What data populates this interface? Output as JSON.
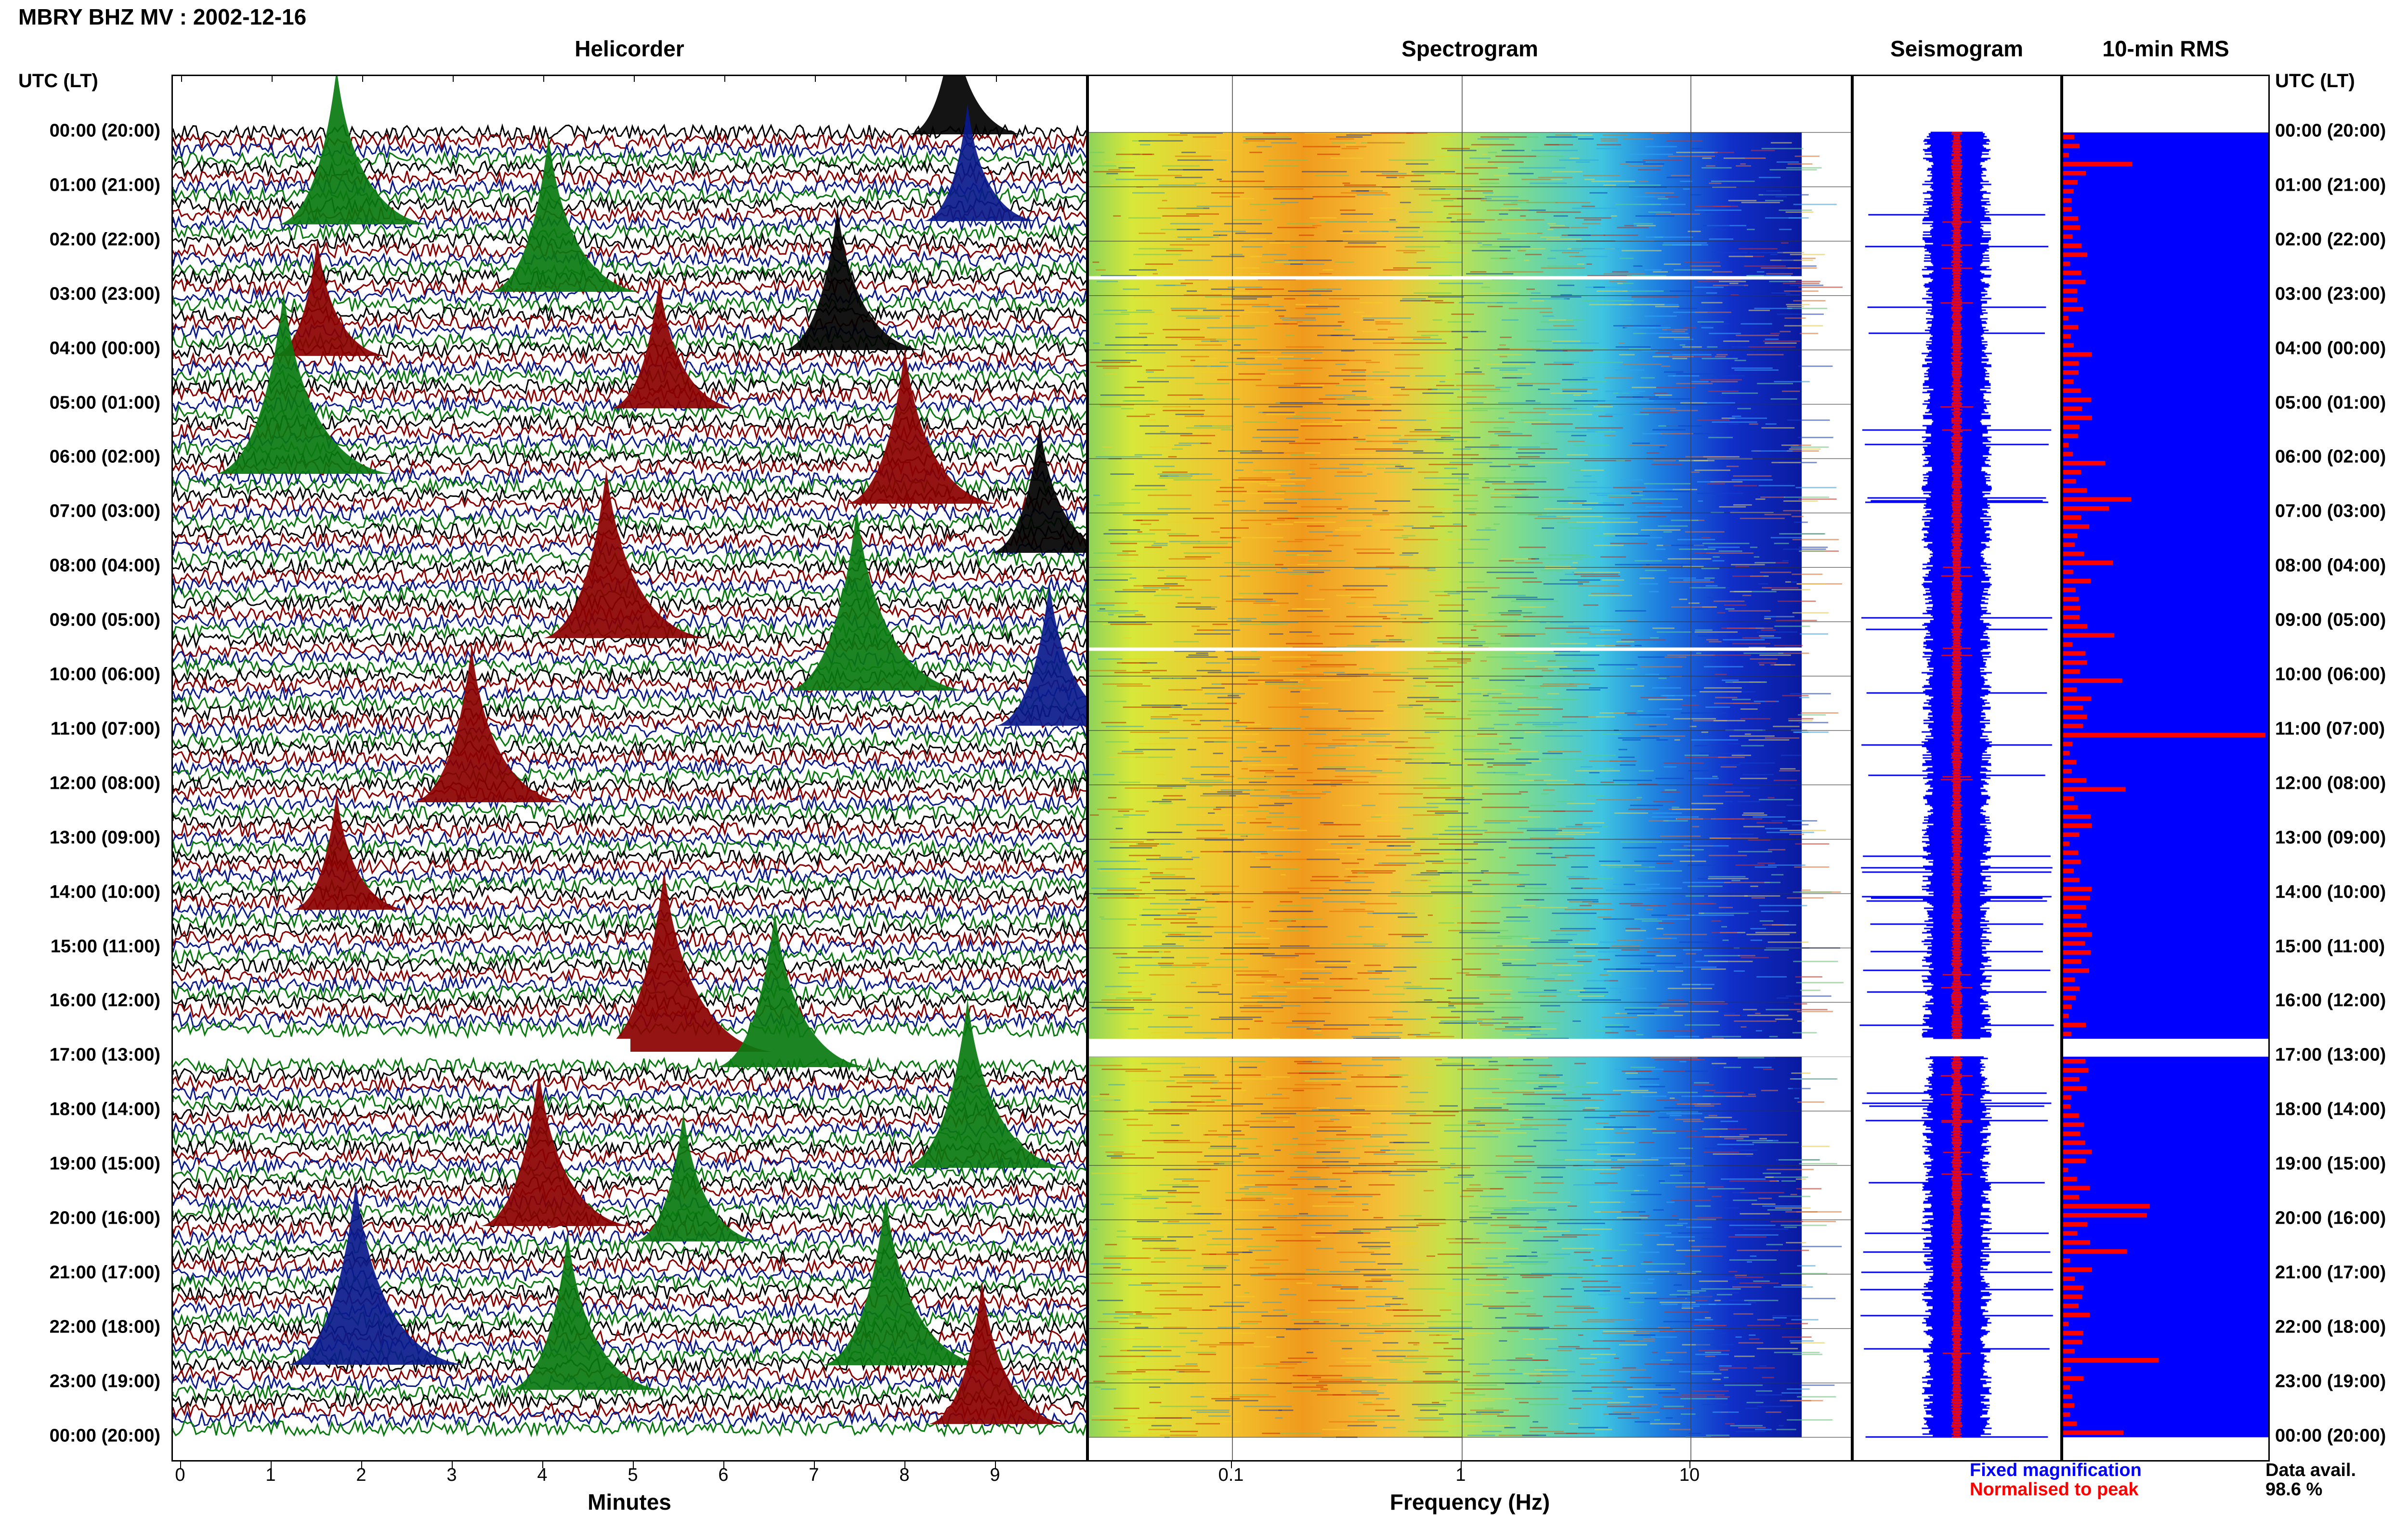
{
  "title": "MBRY BHZ MV : 2002-12-16",
  "panels": {
    "helicorder": "Helicorder",
    "spectrogram": "Spectrogram",
    "seismogram": "Seismogram",
    "rms": "10-min RMS"
  },
  "utc_header_left": "UTC (LT)",
  "utc_header_right": "UTC (LT)",
  "time_labels": [
    "00:00 (20:00)",
    "01:00 (21:00)",
    "02:00 (22:00)",
    "03:00 (23:00)",
    "04:00 (00:00)",
    "05:00 (01:00)",
    "06:00 (02:00)",
    "07:00 (03:00)",
    "08:00 (04:00)",
    "09:00 (05:00)",
    "10:00 (06:00)",
    "11:00 (07:00)",
    "12:00 (08:00)",
    "13:00 (09:00)",
    "14:00 (10:00)",
    "15:00 (11:00)",
    "16:00 (12:00)",
    "17:00 (13:00)",
    "18:00 (14:00)",
    "19:00 (15:00)",
    "20:00 (16:00)",
    "21:00 (17:00)",
    "22:00 (18:00)",
    "23:00 (19:00)",
    "00:00 (20:00)"
  ],
  "helicorder_x_ticks": [
    "0",
    "1",
    "2",
    "3",
    "4",
    "5",
    "6",
    "7",
    "8",
    "9"
  ],
  "helicorder_xlabel": "Minutes",
  "spectrogram_x_ticks": [
    "0.1",
    "1",
    "10"
  ],
  "spectrogram_xlabel": "Frequency (Hz)",
  "legend": {
    "fixed": "Fixed magnification",
    "normalised": "Normalised to peak"
  },
  "data_avail": {
    "label": "Data avail.",
    "value": "98.6 %"
  },
  "colors": {
    "trace_colors": [
      "#000000",
      "#8b0000",
      "#0a1a8c",
      "#0a7a10"
    ],
    "fixed_magnification": "#0000ff",
    "normalised": "#ff0000",
    "rms_bar": "#ff0000",
    "rms_bg": "#0000ff"
  },
  "data_gaps_utc": [
    "02:40",
    "09:30",
    "16:40-17:00"
  ]
}
